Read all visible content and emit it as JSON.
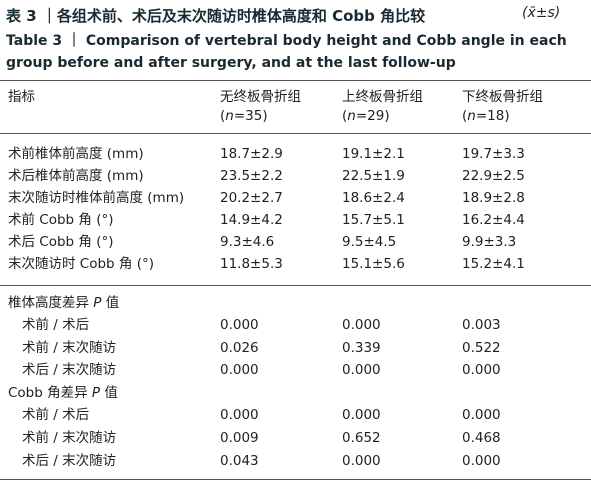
{
  "title_cn": "表 3 ｜各组术前、术后及末次随访时椎体高度和 Cobb 角比较",
  "title_stat": "(x̄±s)",
  "title_en": "Table 3 ｜ Comparison of vertebral body height and Cobb angle in each group before and after surgery, and at the last follow-up",
  "columns": {
    "label": "指标",
    "groups": [
      {
        "name": "无终板骨折组",
        "n_prefix": "(",
        "n_var": "n",
        "n_val": "=35)"
      },
      {
        "name": "上终板骨折组",
        "n_prefix": "(",
        "n_var": "n",
        "n_val": "=29)"
      },
      {
        "name": "下终板骨折组",
        "n_prefix": "(",
        "n_var": "n",
        "n_val": "=18)"
      }
    ]
  },
  "measure_rows": [
    {
      "label": "术前椎体前高度 (mm)",
      "values": [
        "18.7±2.9",
        "19.1±2.1",
        "19.7±3.3"
      ]
    },
    {
      "label": "术后椎体前高度 (mm)",
      "values": [
        "23.5±2.2",
        "22.5±1.9",
        "22.9±2.5"
      ]
    },
    {
      "label": "末次随访时椎体前高度 (mm)",
      "values": [
        "20.2±2.7",
        "18.6±2.4",
        "18.9±2.8"
      ]
    },
    {
      "label": "术前 Cobb 角 (°)",
      "values": [
        "14.9±4.2",
        "15.7±5.1",
        "16.2±4.4"
      ]
    },
    {
      "label": "术后 Cobb 角 (°)",
      "values": [
        "9.3±4.6",
        "9.5±4.5",
        "9.9±3.3"
      ]
    },
    {
      "label": "末次随访时 Cobb 角 (°)",
      "values": [
        "11.8±5.3",
        "15.1±5.6",
        "15.2±4.1"
      ]
    }
  ],
  "p_sections": [
    {
      "heading_pre": "椎体高度差异 ",
      "heading_p": "P",
      "heading_post": " 值",
      "rows": [
        {
          "label": "术前 / 术后",
          "values": [
            "0.000",
            "0.000",
            "0.003"
          ]
        },
        {
          "label": "术前 / 末次随访",
          "values": [
            "0.026",
            "0.339",
            "0.522"
          ]
        },
        {
          "label": "术后 / 末次随访",
          "values": [
            "0.000",
            "0.000",
            "0.000"
          ]
        }
      ]
    },
    {
      "heading_pre": "Cobb 角差异 ",
      "heading_p": "P",
      "heading_post": " 值",
      "rows": [
        {
          "label": "术前 / 术后",
          "values": [
            "0.000",
            "0.000",
            "0.000"
          ]
        },
        {
          "label": "术前 / 末次随访",
          "values": [
            "0.009",
            "0.652",
            "0.468"
          ]
        },
        {
          "label": "术后 / 末次随访",
          "values": [
            "0.043",
            "0.000",
            "0.000"
          ]
        }
      ]
    }
  ]
}
